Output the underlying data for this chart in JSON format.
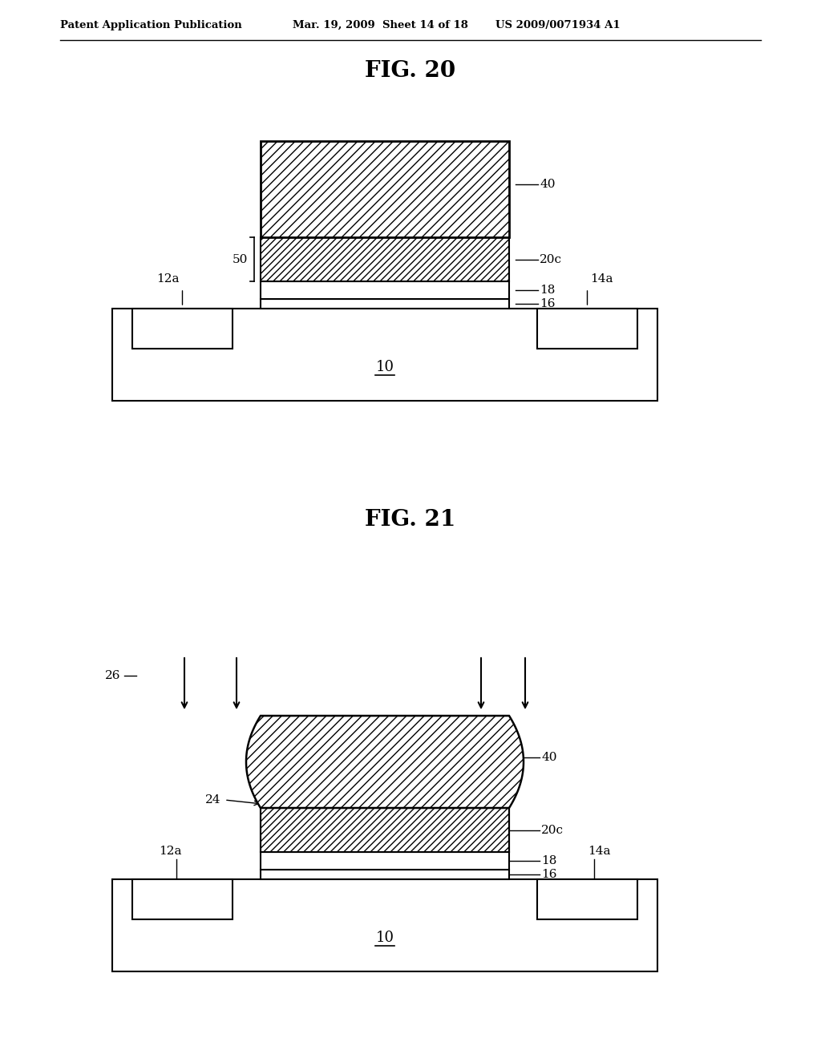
{
  "title_fig20": "FIG. 20",
  "title_fig21": "FIG. 21",
  "header_left": "Patent Application Publication",
  "header_mid": "Mar. 19, 2009  Sheet 14 of 18",
  "header_right": "US 2009/0071934 A1",
  "bg_color": "#ffffff",
  "label_40": "40",
  "label_20c": "20c",
  "label_18": "18",
  "label_16": "16",
  "label_50": "50",
  "label_12a": "12a",
  "label_14a": "14a",
  "label_10": "10",
  "label_24": "24",
  "label_26": "26"
}
